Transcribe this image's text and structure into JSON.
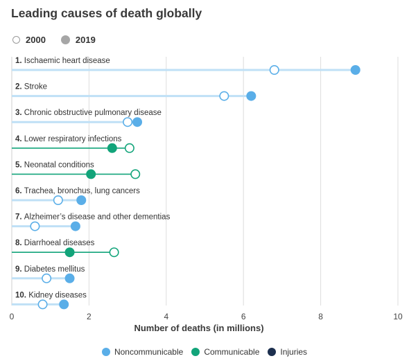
{
  "title": "Leading causes of death globally",
  "year_legend": [
    {
      "label": "2000"
    },
    {
      "label": "2019"
    }
  ],
  "colors": {
    "noncommunicable": "#5aaee8",
    "noncommunicable_line": "#bfe0f6",
    "communicable": "#12a47a",
    "injuries": "#1c2f4e",
    "grid": "#dddddd"
  },
  "chart_data": {
    "type": "dumbbell",
    "xlabel": "Number of deaths (in millions)",
    "xlim": [
      0,
      10
    ],
    "xticks": [
      "0",
      "2",
      "4",
      "6",
      "8",
      "10"
    ],
    "rows": [
      {
        "rank": "1.",
        "label": "Ischaemic heart disease",
        "v2000": 6.8,
        "v2019": 8.9,
        "category": "noncommunicable"
      },
      {
        "rank": "2.",
        "label": "Stroke",
        "v2000": 5.5,
        "v2019": 6.2,
        "category": "noncommunicable"
      },
      {
        "rank": "3.",
        "label": "Chronic obstructive pulmonary disease",
        "v2000": 3.0,
        "v2019": 3.25,
        "category": "noncommunicable"
      },
      {
        "rank": "4.",
        "label": "Lower respiratory infections",
        "v2000": 3.05,
        "v2019": 2.6,
        "category": "communicable"
      },
      {
        "rank": "5.",
        "label": "Neonatal conditions",
        "v2000": 3.2,
        "v2019": 2.05,
        "category": "communicable"
      },
      {
        "rank": "6.",
        "label": "Trachea, bronchus, lung cancers",
        "v2000": 1.2,
        "v2019": 1.8,
        "category": "noncommunicable"
      },
      {
        "rank": "7.",
        "label": "Alzheimer’s disease and other dementias",
        "v2000": 0.6,
        "v2019": 1.65,
        "category": "noncommunicable"
      },
      {
        "rank": "8.",
        "label": "Diarrhoeal diseases",
        "v2000": 2.65,
        "v2019": 1.5,
        "category": "communicable"
      },
      {
        "rank": "9.",
        "label": "Diabetes mellitus",
        "v2000": 0.9,
        "v2019": 1.5,
        "category": "noncommunicable"
      },
      {
        "rank": "10.",
        "label": "Kidney diseases",
        "v2000": 0.8,
        "v2019": 1.35,
        "category": "noncommunicable"
      }
    ],
    "legend": [
      {
        "label": "Noncommunicable",
        "category": "noncommunicable"
      },
      {
        "label": "Communicable",
        "category": "communicable"
      },
      {
        "label": "Injuries",
        "category": "injuries"
      }
    ]
  }
}
